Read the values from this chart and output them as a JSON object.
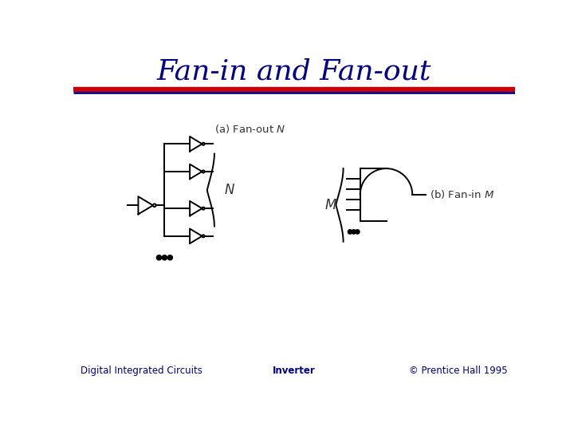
{
  "title": "Fan-in and Fan-out",
  "title_color": "#00008B",
  "title_fontsize": 26,
  "footer_left": "Digital Integrated Circuits",
  "footer_center": "Inverter",
  "footer_right": "© Prentice Hall 1995",
  "footer_fontsize": 8.5,
  "footer_color": "#00008B",
  "line_color": "#000000",
  "label_color": "#333333",
  "separator_red": "#CC0000",
  "separator_blue": "#00008B",
  "bg_color": "#FFFFFF"
}
